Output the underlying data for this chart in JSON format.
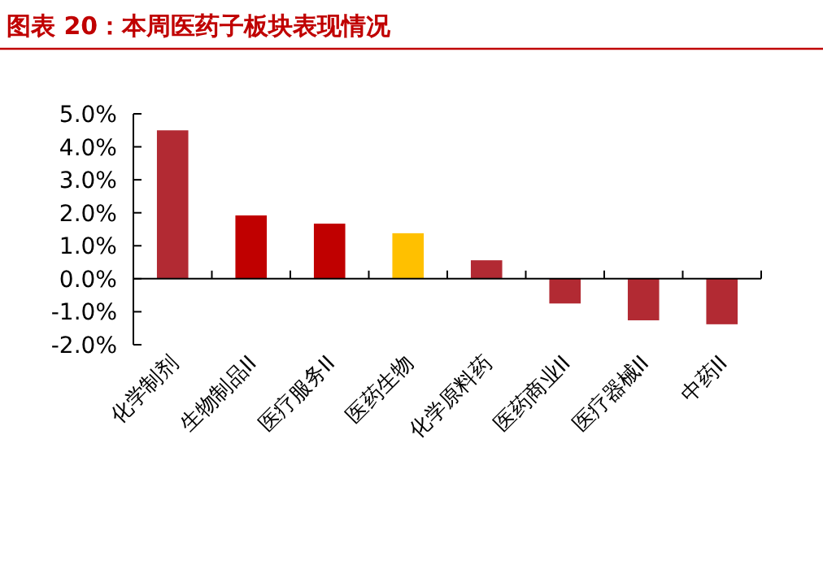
{
  "chart_data": {
    "type": "bar",
    "title": "图表 20：本周医药子板块表现情况",
    "categories": [
      "化学制剂",
      "生物制品II",
      "医疗服务II",
      "医药生物",
      "化学原料药",
      "医药商业II",
      "医疗器械II",
      "中药II"
    ],
    "values": [
      4.5,
      1.92,
      1.67,
      1.38,
      0.56,
      -0.75,
      -1.26,
      -1.38
    ],
    "colors": [
      "#b22a33",
      "#c00000",
      "#c00000",
      "#ffc000",
      "#b22a33",
      "#b22a33",
      "#b22a33",
      "#b22a33"
    ],
    "ylim": [
      -2,
      5
    ],
    "yticks": [
      {
        "value": 5,
        "label": "5.0%"
      },
      {
        "value": 4,
        "label": "4.0%"
      },
      {
        "value": 3,
        "label": "3.0%"
      },
      {
        "value": 2,
        "label": "2.0%"
      },
      {
        "value": 1,
        "label": "1.0%"
      },
      {
        "value": 0,
        "label": "0.0%"
      },
      {
        "value": -1,
        "label": "-1.0%"
      },
      {
        "value": -2,
        "label": "-2.0%"
      }
    ]
  }
}
